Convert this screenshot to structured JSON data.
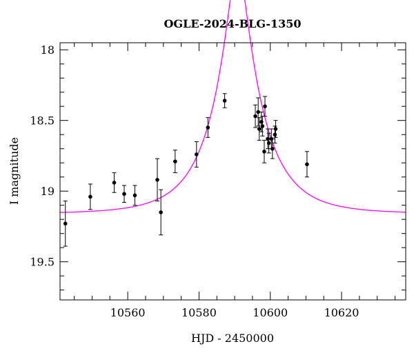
{
  "chart_data": {
    "type": "scatter",
    "title": "OGLE-2024-BLG-1350",
    "xlabel": "HJD - 2450000",
    "ylabel": "I magnitude",
    "xlim": [
      10541,
      10638
    ],
    "ylim": [
      19.77,
      17.95
    ],
    "y_inverted": true,
    "x_ticks": [
      10560,
      10580,
      10600,
      10620
    ],
    "y_ticks": [
      18,
      18.5,
      19,
      19.5
    ],
    "x_tick_labels": [
      "10560",
      "10580",
      "10600",
      "10620"
    ],
    "y_tick_labels": [
      "18",
      "18.5",
      "19",
      "19.5"
    ],
    "x_minor_step": 5,
    "y_minor_step": 0.1,
    "grid": false,
    "model": {
      "name": "microlensing-model",
      "color": "#ff00ff",
      "t0": 10590.8,
      "u0": 0.205,
      "tE": 13.5,
      "baseline_mag": 19.16
    },
    "points": [
      {
        "x": 10542.5,
        "y": 19.23,
        "err": 0.16
      },
      {
        "x": 10549.5,
        "y": 19.04,
        "err": 0.09
      },
      {
        "x": 10556.2,
        "y": 18.94,
        "err": 0.07
      },
      {
        "x": 10559.0,
        "y": 19.02,
        "err": 0.06
      },
      {
        "x": 10562.0,
        "y": 19.03,
        "err": 0.07
      },
      {
        "x": 10568.3,
        "y": 18.92,
        "err": 0.15
      },
      {
        "x": 10569.3,
        "y": 19.15,
        "err": 0.16
      },
      {
        "x": 10573.3,
        "y": 18.79,
        "err": 0.08
      },
      {
        "x": 10579.3,
        "y": 18.74,
        "err": 0.09
      },
      {
        "x": 10582.5,
        "y": 18.55,
        "err": 0.07
      },
      {
        "x": 10587.2,
        "y": 18.36,
        "err": 0.05
      },
      {
        "x": 10595.8,
        "y": 18.47,
        "err": 0.08
      },
      {
        "x": 10596.6,
        "y": 18.44,
        "err": 0.1
      },
      {
        "x": 10596.9,
        "y": 18.56,
        "err": 0.08
      },
      {
        "x": 10597.5,
        "y": 18.51,
        "err": 0.07
      },
      {
        "x": 10597.8,
        "y": 18.54,
        "err": 0.07
      },
      {
        "x": 10598.3,
        "y": 18.72,
        "err": 0.08
      },
      {
        "x": 10598.5,
        "y": 18.4,
        "err": 0.07
      },
      {
        "x": 10599.3,
        "y": 18.63,
        "err": 0.07
      },
      {
        "x": 10599.6,
        "y": 18.66,
        "err": 0.07
      },
      {
        "x": 10600.3,
        "y": 18.63,
        "err": 0.07
      },
      {
        "x": 10600.6,
        "y": 18.7,
        "err": 0.07
      },
      {
        "x": 10601.3,
        "y": 18.6,
        "err": 0.06
      },
      {
        "x": 10601.5,
        "y": 18.56,
        "err": 0.06
      },
      {
        "x": 10610.3,
        "y": 18.81,
        "err": 0.09
      }
    ]
  }
}
